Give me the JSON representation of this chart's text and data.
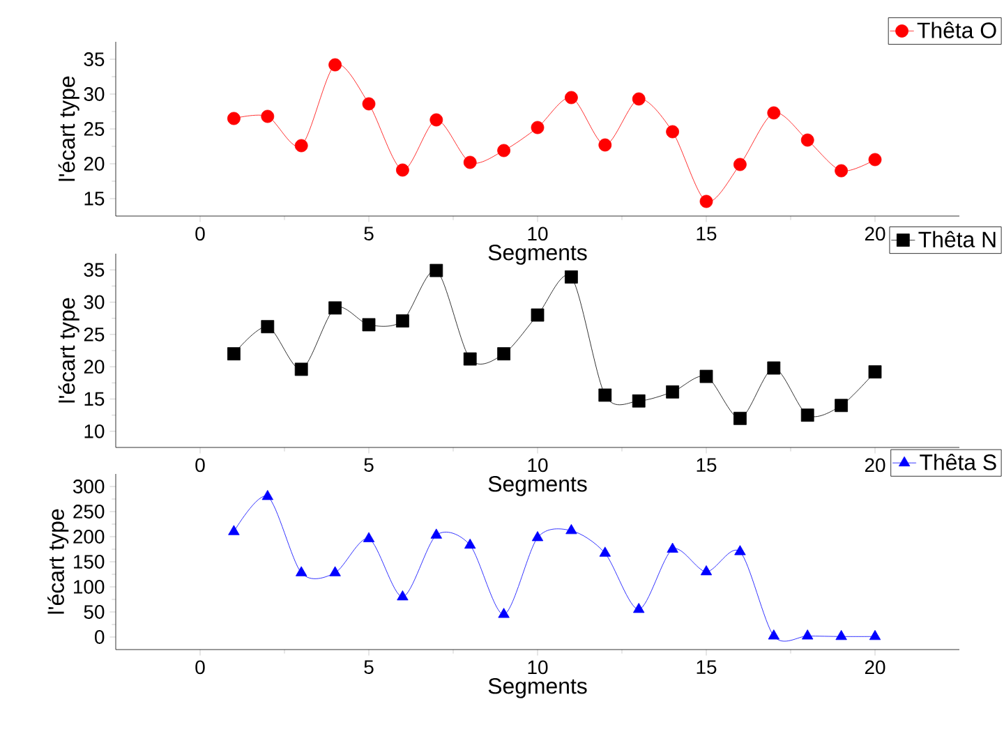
{
  "chart_data": [
    {
      "type": "line",
      "xlabel": "Segments",
      "ylabel": "l'écart type",
      "x": [
        1,
        2,
        3,
        4,
        5,
        6,
        7,
        8,
        9,
        10,
        11,
        12,
        13,
        14,
        15,
        16,
        17,
        18,
        19,
        20
      ],
      "xlim": [
        -2.5,
        22.5
      ],
      "xticks": [
        0,
        5,
        10,
        15,
        20
      ],
      "ylim": [
        12.5,
        37.5
      ],
      "yticks": [
        15,
        20,
        25,
        30,
        35
      ],
      "legend": "top right",
      "marker": "circle",
      "line_style": "solid",
      "series": [
        {
          "name": "Thêta O",
          "color": "#ff0000",
          "values": [
            26.5,
            26.8,
            22.6,
            34.2,
            28.6,
            19.1,
            26.3,
            20.2,
            21.9,
            25.2,
            29.5,
            22.7,
            29.3,
            24.6,
            14.6,
            19.9,
            27.3,
            23.4,
            19.0,
            20.6
          ]
        }
      ]
    },
    {
      "type": "line",
      "xlabel": "Segments",
      "ylabel": "l'écart type",
      "x": [
        1,
        2,
        3,
        4,
        5,
        6,
        7,
        8,
        9,
        10,
        11,
        12,
        13,
        14,
        15,
        16,
        17,
        18,
        19,
        20
      ],
      "xlim": [
        -2.5,
        22.5
      ],
      "xticks": [
        0,
        5,
        10,
        15,
        20
      ],
      "ylim": [
        7.5,
        37.5
      ],
      "yticks": [
        10,
        15,
        20,
        25,
        30,
        35
      ],
      "legend": "top right",
      "marker": "square",
      "line_style": "solid",
      "series": [
        {
          "name": "Thêta N",
          "color": "#000000",
          "values": [
            22.0,
            26.2,
            19.6,
            29.1,
            26.5,
            27.1,
            34.9,
            21.2,
            22.0,
            28.0,
            33.9,
            15.6,
            14.7,
            16.1,
            18.5,
            12.0,
            19.8,
            12.5,
            14.0,
            19.2
          ]
        }
      ]
    },
    {
      "type": "line",
      "xlabel": "Segments",
      "ylabel": "l'écart type",
      "x": [
        1,
        2,
        3,
        4,
        5,
        6,
        7,
        8,
        9,
        10,
        11,
        12,
        13,
        14,
        15,
        16,
        17,
        18,
        19,
        20
      ],
      "xlim": [
        -2.5,
        22.5
      ],
      "xticks": [
        0,
        5,
        10,
        15,
        20
      ],
      "ylim": [
        -25,
        325
      ],
      "yticks": [
        0,
        50,
        100,
        150,
        200,
        250,
        300
      ],
      "legend": "top right",
      "marker": "triangle",
      "line_style": "solid",
      "series": [
        {
          "name": "Thêta S",
          "color": "#0000ff",
          "values": [
            210,
            280,
            128,
            128,
            196,
            80,
            203,
            183,
            45,
            198,
            212,
            167,
            55,
            175,
            130,
            170,
            2,
            2,
            1,
            1
          ]
        }
      ]
    }
  ]
}
